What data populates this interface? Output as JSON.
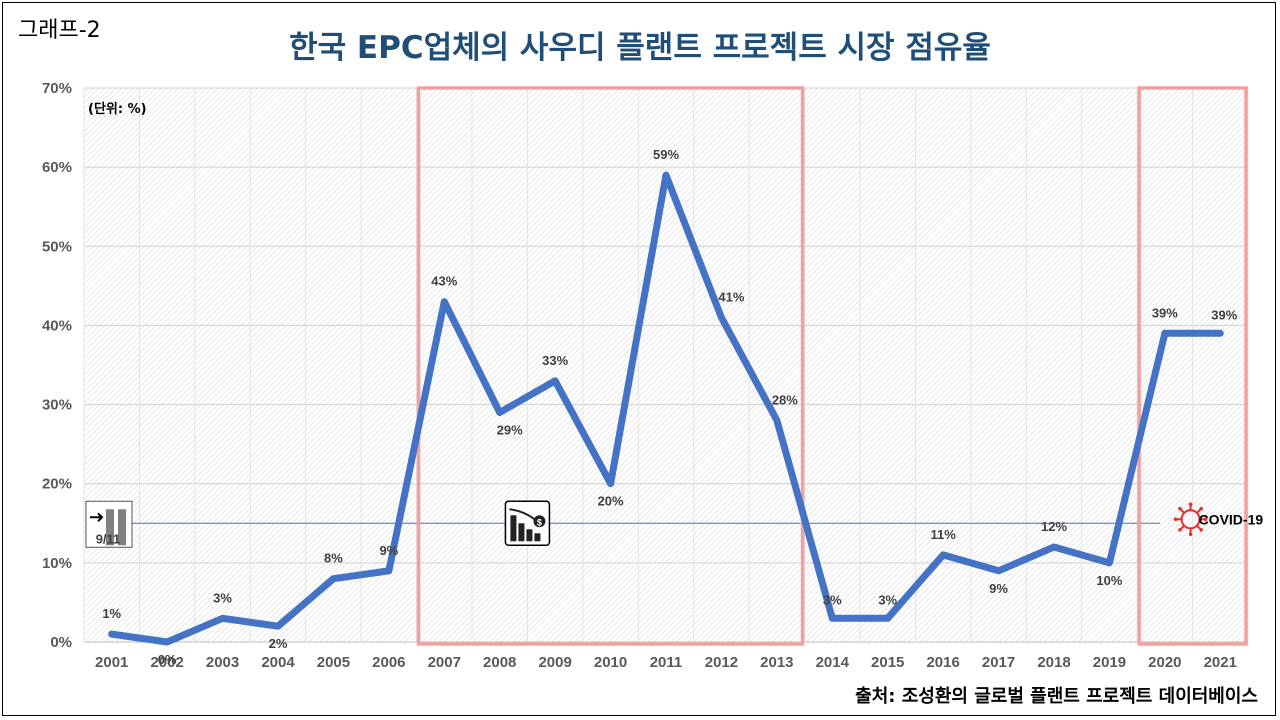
{
  "figure_label": "그래프-2",
  "title": "한국 EPC업체의 사우디 플랜트 프로젝트 시장 점유율",
  "source": "출처: 조성환의 글로벌 플랜트 프로젝트 데이터베이스",
  "chart_data": {
    "type": "line",
    "unit_label": "(단위: %)",
    "x": [
      "2001",
      "2002",
      "2003",
      "2004",
      "2005",
      "2006",
      "2007",
      "2008",
      "2009",
      "2010",
      "2011",
      "2012",
      "2013",
      "2014",
      "2015",
      "2016",
      "2017",
      "2018",
      "2019",
      "2020",
      "2021"
    ],
    "values": [
      1,
      0,
      3,
      2,
      8,
      9,
      43,
      29,
      33,
      20,
      59,
      41,
      28,
      3,
      3,
      11,
      9,
      12,
      10,
      39,
      39
    ],
    "data_labels": [
      "1%",
      "0%",
      "3%",
      "2%",
      "8%",
      "9%",
      "43%",
      "29%",
      "33%",
      "20%",
      "59%",
      "41%",
      "28%",
      "3%",
      "3%",
      "11%",
      "9%",
      "12%",
      "10%",
      "39%",
      "39%"
    ],
    "y_ticks": [
      "0%",
      "10%",
      "20%",
      "30%",
      "40%",
      "50%",
      "60%",
      "70%"
    ],
    "ylim": [
      0,
      70
    ],
    "grid": true,
    "line_color": "#4472c4",
    "highlight_color": "#f4a0a0",
    "highlight_ranges": [
      [
        "2007",
        "2013"
      ],
      [
        "2020",
        "2021"
      ]
    ],
    "reference_line_value": 15,
    "annotations": [
      {
        "name": "9-11-icon",
        "text": "9/11",
        "x": "2001"
      },
      {
        "name": "financial-crisis-icon",
        "text": "",
        "x": "2008.5"
      },
      {
        "name": "covid-icon",
        "text": "COVID-19",
        "x": "2020.5"
      }
    ]
  }
}
